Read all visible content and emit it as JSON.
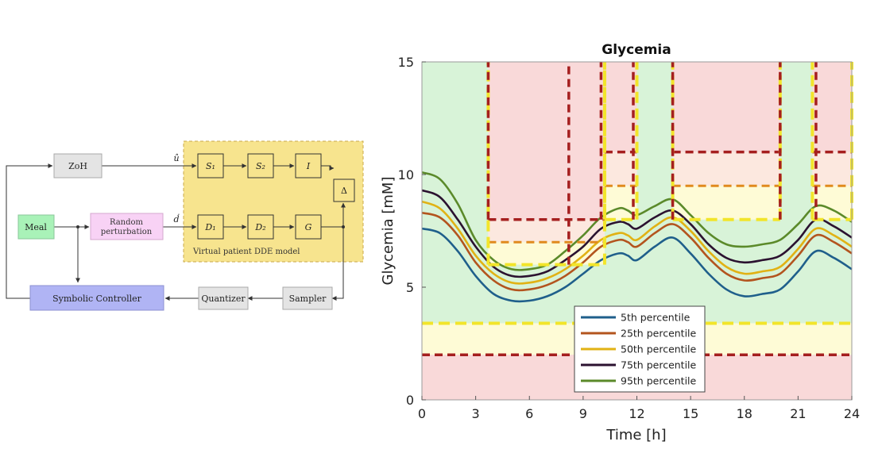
{
  "diagram": {
    "blocks": {
      "zoh": "ZoH",
      "meal": "Meal",
      "random": [
        "Random",
        "perturbation"
      ],
      "symbolic": "Symbolic Controller",
      "quantizer": "Quantizer",
      "sampler": "Sampler",
      "s1": "S₁",
      "s2": "S₂",
      "i": "I",
      "d1": "D₁",
      "d2": "D₂",
      "g": "G",
      "delta": "Δ"
    },
    "signals": {
      "u": "û",
      "d": "ḋ"
    },
    "dde_caption": "Virtual patient DDE model"
  },
  "chart_data": {
    "type": "line",
    "title": "Glycemia",
    "xlabel": "Time [h]",
    "ylabel": "Glycemia [mM]",
    "xlim": [
      0,
      24
    ],
    "ylim": [
      0,
      15
    ],
    "xticks": [
      "0",
      "3",
      "6",
      "9",
      "12",
      "15",
      "18",
      "21",
      "24"
    ],
    "yticks": [
      "0",
      "5",
      "10",
      "15"
    ],
    "legend_position": "bottom-center",
    "x": [
      0,
      1,
      2,
      3,
      4,
      5,
      6,
      7,
      8,
      9,
      10,
      11,
      11.5,
      12,
      13,
      14,
      15,
      16,
      17,
      18,
      19,
      20,
      21,
      22,
      23,
      24
    ],
    "series": [
      {
        "name": "5th percentile",
        "color": "#1f5f8b",
        "values": [
          7.6,
          7.4,
          6.6,
          5.5,
          4.7,
          4.4,
          4.4,
          4.6,
          5.0,
          5.6,
          6.2,
          6.5,
          6.4,
          6.2,
          6.8,
          7.2,
          6.5,
          5.6,
          4.9,
          4.6,
          4.7,
          4.9,
          5.7,
          6.6,
          6.3,
          5.8
        ]
      },
      {
        "name": "25th percentile",
        "color": "#b3541e",
        "values": [
          8.3,
          8.1,
          7.3,
          6.1,
          5.3,
          4.9,
          4.9,
          5.1,
          5.5,
          6.1,
          6.8,
          7.1,
          7.0,
          6.8,
          7.4,
          7.8,
          7.2,
          6.3,
          5.6,
          5.3,
          5.4,
          5.6,
          6.4,
          7.3,
          7.0,
          6.5
        ]
      },
      {
        "name": "50th percentile",
        "color": "#e1b214",
        "values": [
          8.8,
          8.5,
          7.6,
          6.4,
          5.6,
          5.2,
          5.2,
          5.4,
          5.8,
          6.4,
          7.1,
          7.4,
          7.3,
          7.1,
          7.7,
          8.1,
          7.5,
          6.6,
          5.9,
          5.6,
          5.7,
          5.9,
          6.7,
          7.6,
          7.3,
          6.8
        ]
      },
      {
        "name": "75th percentile",
        "color": "#2b1230",
        "values": [
          9.3,
          9.0,
          8.0,
          6.8,
          5.9,
          5.5,
          5.5,
          5.7,
          6.2,
          6.8,
          7.6,
          7.9,
          7.8,
          7.6,
          8.1,
          8.4,
          7.8,
          6.9,
          6.3,
          6.1,
          6.2,
          6.4,
          7.1,
          8.0,
          7.7,
          7.2
        ]
      },
      {
        "name": "95th percentile",
        "color": "#5b8a2a",
        "values": [
          10.1,
          9.8,
          8.7,
          7.1,
          6.2,
          5.8,
          5.8,
          6.0,
          6.6,
          7.3,
          8.1,
          8.5,
          8.4,
          8.2,
          8.6,
          8.9,
          8.2,
          7.4,
          6.9,
          6.8,
          6.9,
          7.1,
          7.8,
          8.6,
          8.4,
          7.9
        ]
      }
    ],
    "regions": {
      "colors": {
        "safe": "#d8f3d8",
        "warn": "#fefbd6",
        "danger": "#f9d9d9"
      },
      "low_warn": 3.4,
      "low_danger": 2.0,
      "upper_segments": [
        {
          "x0": 0,
          "x1": 3.7,
          "warn": null,
          "orange": null,
          "danger": null
        },
        {
          "x0": 3.7,
          "x1": 10.2,
          "warn": 6.0,
          "orange": 7.0,
          "danger": 8.0
        },
        {
          "x0": 10.2,
          "x1": 12.0,
          "warn": 8.0,
          "orange": 9.5,
          "danger": 11.0
        },
        {
          "x0": 12.0,
          "x1": 14.0,
          "warn": null,
          "orange": null,
          "danger": null
        },
        {
          "x0": 14.0,
          "x1": 20.0,
          "warn": 8.0,
          "orange": 9.5,
          "danger": 11.0
        },
        {
          "x0": 20.0,
          "x1": 21.8,
          "warn": null,
          "orange": null,
          "danger": null
        },
        {
          "x0": 21.8,
          "x1": 24,
          "warn": 8.0,
          "orange": 9.5,
          "danger": 11.0
        }
      ],
      "danger_walls": [
        {
          "x": 3.7,
          "ylo": 8.0
        },
        {
          "x": 8.2,
          "ylo": 6.0
        },
        {
          "x": 10.0,
          "ylo": 8.0
        },
        {
          "x": 11.8,
          "ylo": 8.0
        },
        {
          "x": 14.0,
          "ylo": 8.0
        },
        {
          "x": 20.0,
          "ylo": 8.0
        },
        {
          "x": 22.0,
          "ylo": 8.0
        }
      ]
    }
  }
}
